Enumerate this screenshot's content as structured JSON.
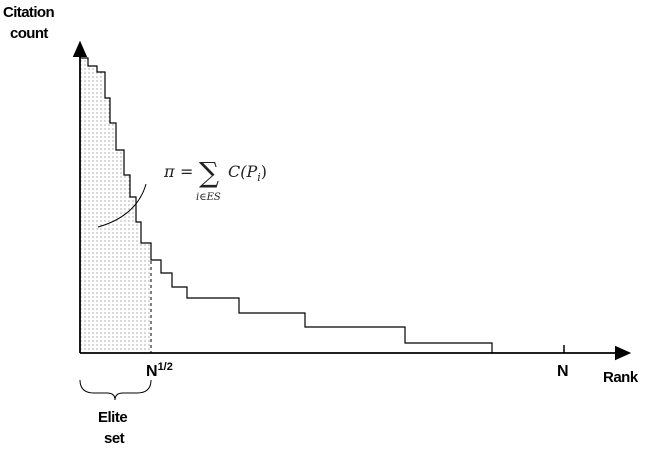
{
  "axes": {
    "y_label_line1": "Citation",
    "y_label_line2": "count",
    "x_label": "Rank",
    "tick_sqrt_base": "N",
    "tick_sqrt_exp": "1/2",
    "tick_n": "N"
  },
  "formula": {
    "lhs": "π",
    "equals": "=",
    "sum_symbol": "∑",
    "sub_index": "i∈ES",
    "body": "C(P",
    "body_sub": "i",
    "body_close": ")"
  },
  "bracket_label": {
    "line1": "Elite",
    "line2": "set"
  },
  "colors": {
    "stroke": "#000000",
    "dots": "#444444"
  }
}
